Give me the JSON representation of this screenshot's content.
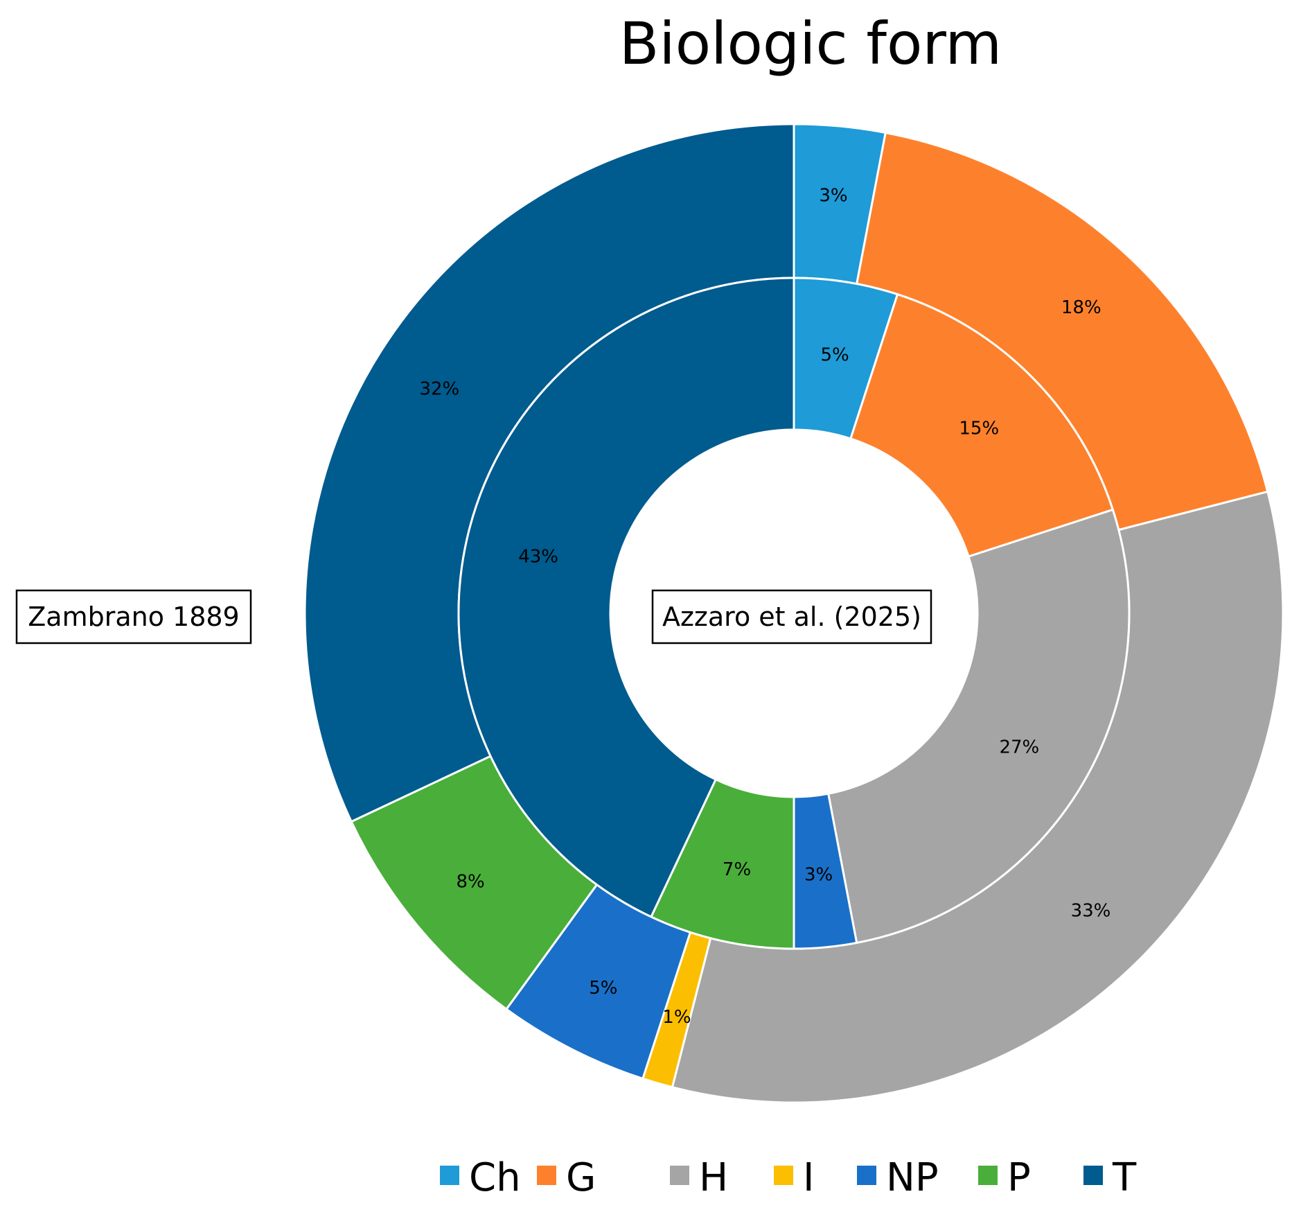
{
  "chart_data": {
    "type": "donut",
    "title": "Biologic form",
    "categories": [
      "Ch",
      "G",
      "H",
      "I",
      "NP",
      "P",
      "T"
    ],
    "colors": [
      "#1f9bd7",
      "#fd812d",
      "#a5a5a5",
      "#fcbe00",
      "#1a70c8",
      "#4aae3a",
      "#005b8e"
    ],
    "series": [
      {
        "name": "Azzaro et al. (2025)",
        "ring": "inner",
        "values": [
          5,
          15,
          27,
          0,
          3,
          7,
          43
        ],
        "labels": [
          "5%",
          "15%",
          "27%",
          "",
          "3%",
          "7%",
          "43%"
        ]
      },
      {
        "name": "Zambrano 1889",
        "ring": "outer",
        "values": [
          3,
          18,
          33,
          1,
          5,
          8,
          32
        ],
        "labels": [
          "3%",
          "18%",
          "33%",
          "1%",
          "5%",
          "8%",
          "32%"
        ]
      }
    ],
    "legend_position": "bottom"
  }
}
